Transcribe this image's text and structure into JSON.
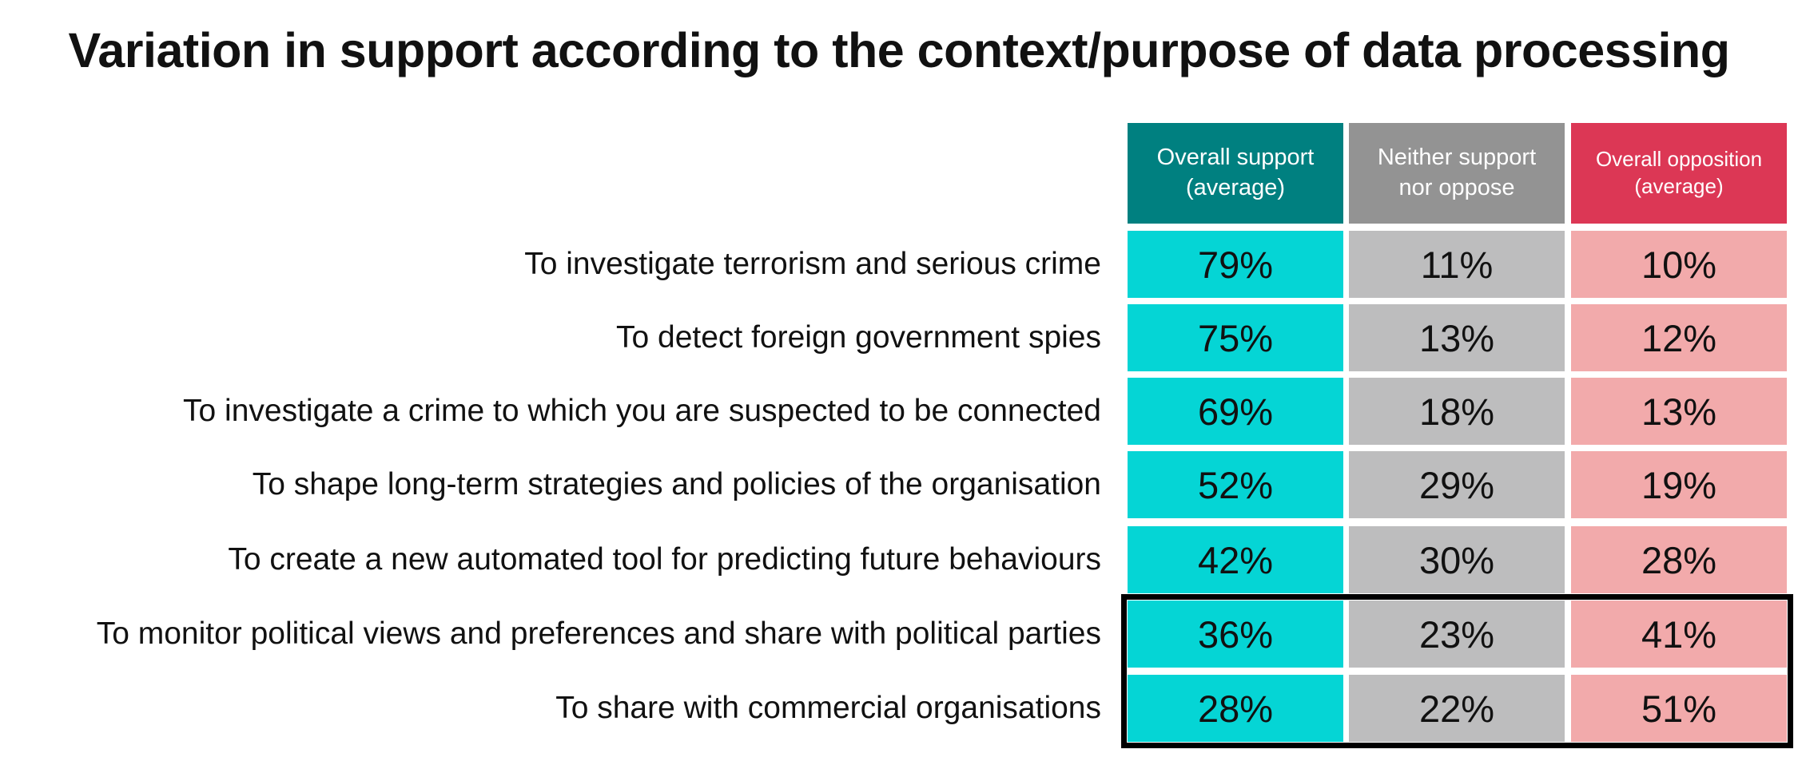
{
  "chart_data": {
    "type": "table",
    "title": "Variation in support according to the context/purpose of data processing",
    "columns": [
      {
        "label": "Overall support\n(average)",
        "color": "#008080",
        "cell_color": "#05d5d5"
      },
      {
        "label": "Neither support\nnor oppose",
        "color": "#939393",
        "cell_color": "#bdbdbe"
      },
      {
        "label": "Overall opposition\n(average)",
        "color": "#dc3755",
        "cell_color": "#f2aaab"
      }
    ],
    "rows": [
      {
        "label": "To investigate terrorism and serious crime",
        "values": [
          "79%",
          "11%",
          "10%"
        ]
      },
      {
        "label": "To detect foreign government spies",
        "values": [
          "75%",
          "13%",
          "12%"
        ]
      },
      {
        "label": "To investigate a crime to which you are suspected to be connected",
        "values": [
          "69%",
          "18%",
          "13%"
        ]
      },
      {
        "label": "To shape long-term strategies and policies of the organisation",
        "values": [
          "52%",
          "29%",
          "19%"
        ]
      },
      {
        "label": "To create a new automated tool for predicting future behaviours",
        "values": [
          "42%",
          "30%",
          "28%"
        ]
      },
      {
        "label": "To monitor political views and preferences and share with political parties",
        "values": [
          "36%",
          "23%",
          "41%"
        ]
      },
      {
        "label": "To share with commercial organisations",
        "values": [
          "28%",
          "22%",
          "51%"
        ]
      }
    ],
    "highlighted_rows": [
      5,
      6
    ],
    "highlight_color": "#000000"
  }
}
